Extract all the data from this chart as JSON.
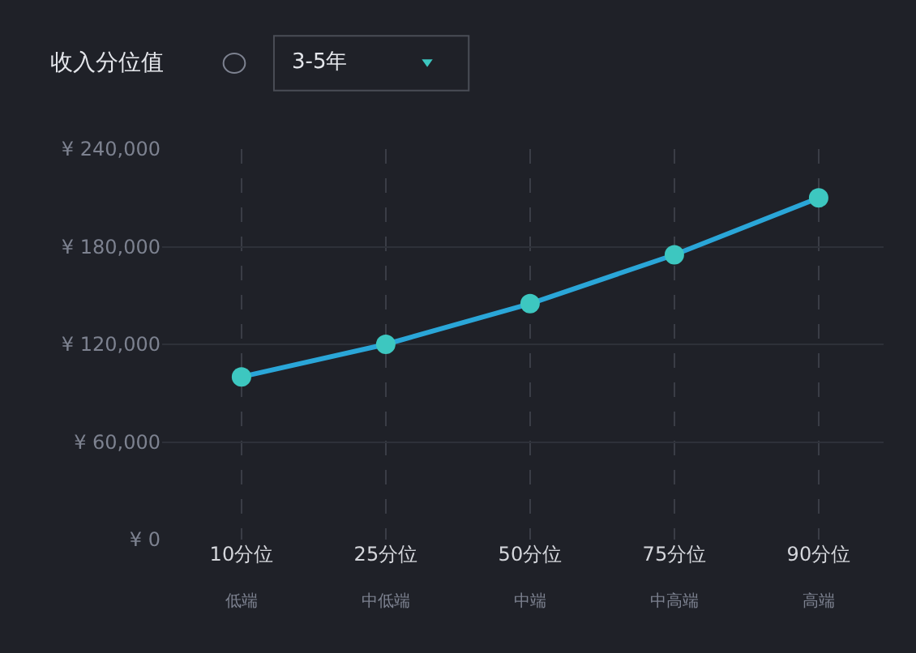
{
  "chart_data": {
    "type": "line",
    "title": "收入分位值",
    "annotations": [
      "3-5年",
      "低端",
      "中低端",
      "中端",
      "中高端",
      "高端"
    ],
    "categories": [
      "10分位",
      "25分位",
      "50分位",
      "75分位",
      "90分位"
    ],
    "series": [
      {
        "color": "#2aa6d8",
        "values": [
          100000,
          120000,
          145000,
          175000,
          210000
        ]
      }
    ],
    "ylim": [
      0,
      240000
    ],
    "yticks": [
      {
        "value": 0,
        "label": "¥ 0"
      },
      {
        "value": 60000,
        "label": "¥ 60,000"
      },
      {
        "value": 120000,
        "label": "¥ 120,000"
      },
      {
        "value": 180000,
        "label": "¥ 180,000"
      },
      {
        "value": 240000,
        "label": "¥ 240,000"
      }
    ],
    "grid": true,
    "marker": "circle",
    "line_style": "solid"
  }
}
